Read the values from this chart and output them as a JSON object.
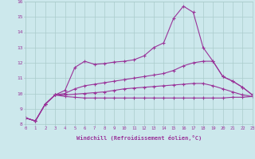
{
  "xlabel": "Windchill (Refroidissement éolien,°C)",
  "background_color": "#cce8ec",
  "grid_color": "#aacccc",
  "line_color": "#993399",
  "xlim": [
    0,
    23
  ],
  "ylim": [
    8,
    16
  ],
  "x": [
    0,
    1,
    2,
    3,
    4,
    5,
    6,
    7,
    8,
    9,
    10,
    11,
    12,
    13,
    14,
    15,
    16,
    17,
    18,
    19,
    20,
    21,
    22,
    23
  ],
  "line1": [
    8.4,
    8.2,
    9.3,
    9.9,
    10.2,
    11.7,
    12.1,
    11.9,
    11.95,
    12.05,
    12.1,
    12.2,
    12.45,
    13.0,
    13.3,
    14.9,
    15.7,
    15.3,
    13.0,
    12.1,
    11.1,
    10.8,
    10.4,
    9.9
  ],
  "line2": [
    8.4,
    8.2,
    9.3,
    9.9,
    10.0,
    10.3,
    10.5,
    10.6,
    10.7,
    10.8,
    10.9,
    11.0,
    11.1,
    11.2,
    11.3,
    11.5,
    11.8,
    12.0,
    12.1,
    12.1,
    11.1,
    10.8,
    10.4,
    9.9
  ],
  "line3": [
    8.4,
    8.2,
    9.3,
    9.9,
    9.9,
    9.95,
    10.0,
    10.05,
    10.1,
    10.2,
    10.3,
    10.35,
    10.4,
    10.45,
    10.5,
    10.55,
    10.6,
    10.65,
    10.65,
    10.5,
    10.3,
    10.1,
    9.9,
    9.8
  ],
  "line4": [
    8.4,
    8.2,
    9.3,
    9.9,
    9.8,
    9.75,
    9.7,
    9.7,
    9.7,
    9.7,
    9.7,
    9.7,
    9.7,
    9.7,
    9.7,
    9.7,
    9.7,
    9.7,
    9.7,
    9.7,
    9.7,
    9.75,
    9.75,
    9.8
  ],
  "xticks": [
    0,
    1,
    2,
    3,
    4,
    5,
    6,
    7,
    8,
    9,
    10,
    11,
    12,
    13,
    14,
    15,
    16,
    17,
    18,
    19,
    20,
    21,
    22,
    23
  ],
  "yticks": [
    8,
    9,
    10,
    11,
    12,
    13,
    14,
    15,
    16
  ]
}
